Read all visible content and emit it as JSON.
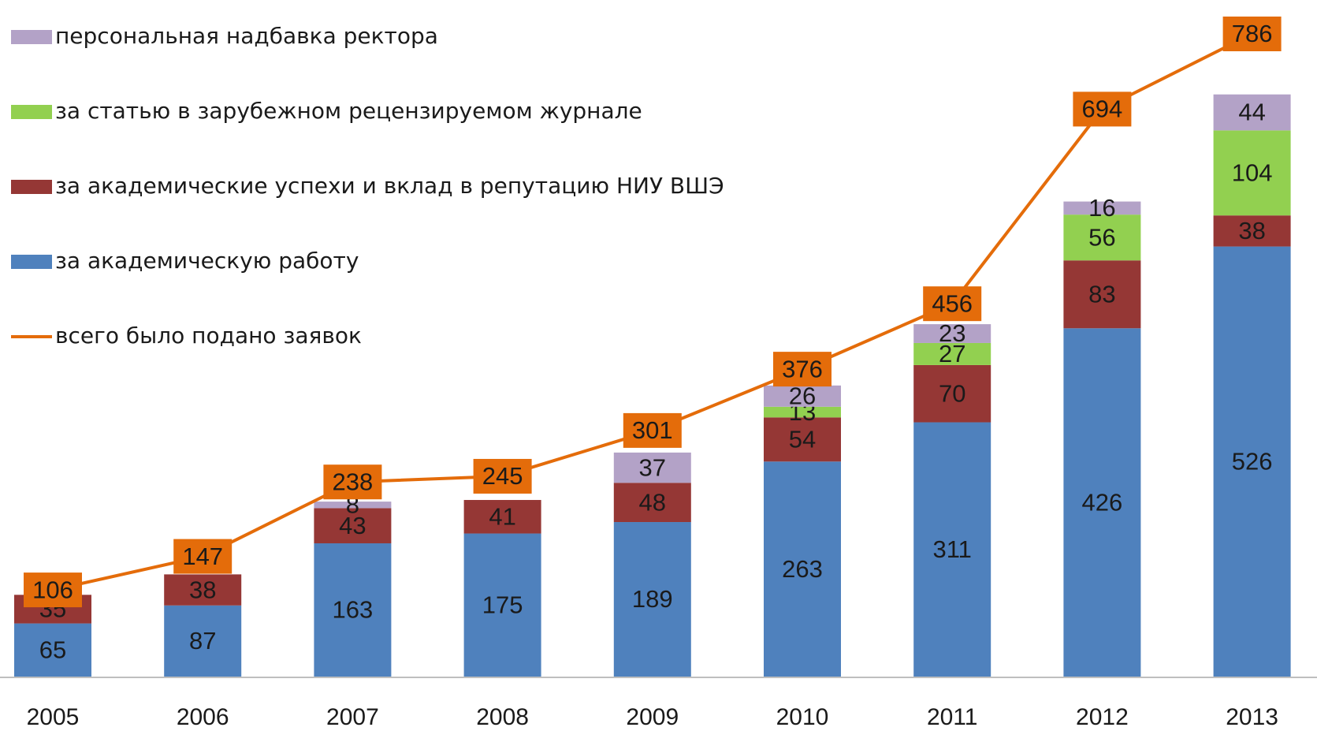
{
  "chart_data": {
    "type": "bar",
    "stacked": true,
    "categories": [
      "2005",
      "2006",
      "2007",
      "2008",
      "2009",
      "2010",
      "2011",
      "2012",
      "2013"
    ],
    "series": [
      {
        "name": "персональная надбавка ректора",
        "color": "#b3a2c7",
        "values": [
          null,
          null,
          8,
          null,
          37,
          26,
          23,
          16,
          44
        ]
      },
      {
        "name": "за статью в зарубежном рецензируемом журнале",
        "color": "#92d050",
        "values": [
          null,
          null,
          null,
          null,
          null,
          13,
          27,
          56,
          104
        ]
      },
      {
        "name": "за академические успехи и вклад в репутацию НИУ ВШЭ",
        "color": "#953735",
        "values": [
          35,
          38,
          43,
          41,
          48,
          54,
          70,
          83,
          38
        ]
      },
      {
        "name": "за академическую работу",
        "color": "#4f81bd",
        "values": [
          65,
          87,
          163,
          175,
          189,
          263,
          311,
          426,
          526
        ]
      },
      {
        "name": "всего было подано заявок",
        "color": "#e46c0a",
        "type": "line",
        "values": [
          106,
          147,
          238,
          245,
          301,
          376,
          456,
          694,
          786
        ]
      }
    ]
  }
}
